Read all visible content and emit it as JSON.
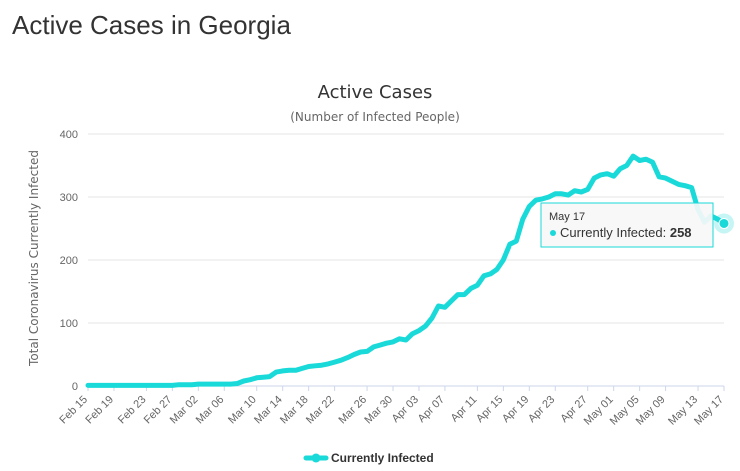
{
  "page": {
    "title": "Active Cases in Georgia"
  },
  "chart_data": {
    "type": "line",
    "title": "Active Cases",
    "subtitle": "(Number of Infected People)",
    "ylabel": "Total Coronavirus Currently Infected",
    "xlabel": "",
    "ylim": [
      0,
      400
    ],
    "yticks": [
      0,
      100,
      200,
      300,
      400
    ],
    "grid": true,
    "legend": "bottom-center",
    "x_tick_labels": [
      "Feb 15",
      "Feb 19",
      "Feb 23",
      "Feb 27",
      "Mar 02",
      "Mar 06",
      "Mar 10",
      "Mar 14",
      "Mar 18",
      "Mar 22",
      "Mar 26",
      "Mar 30",
      "Apr 03",
      "Apr 07",
      "Apr 11",
      "Apr 15",
      "Apr 19",
      "Apr 23",
      "Apr 27",
      "May 01",
      "May 05",
      "May 09",
      "May 13",
      "May 17"
    ],
    "color": "#1ad9d9",
    "series": [
      {
        "name": "Currently Infected",
        "values": [
          1,
          1,
          1,
          1,
          1,
          1,
          1,
          1,
          1,
          1,
          1,
          1,
          1,
          1,
          2,
          2,
          2,
          3,
          3,
          3,
          3,
          3,
          3,
          4,
          8,
          10,
          13,
          14,
          15,
          22,
          24,
          25,
          25,
          28,
          31,
          32,
          33,
          35,
          38,
          41,
          45,
          50,
          54,
          55,
          62,
          65,
          68,
          70,
          75,
          73,
          83,
          88,
          95,
          108,
          127,
          125,
          135,
          145,
          145,
          155,
          160,
          175,
          178,
          185,
          200,
          225,
          230,
          265,
          285,
          295,
          297,
          300,
          305,
          305,
          303,
          310,
          308,
          312,
          330,
          335,
          337,
          333,
          345,
          350,
          365,
          358,
          360,
          355,
          332,
          330,
          325,
          320,
          318,
          315,
          280,
          260,
          270,
          265,
          258
        ]
      }
    ],
    "tooltip": {
      "date": "May 17",
      "label": "Currently Infected:",
      "value": "258"
    }
  }
}
